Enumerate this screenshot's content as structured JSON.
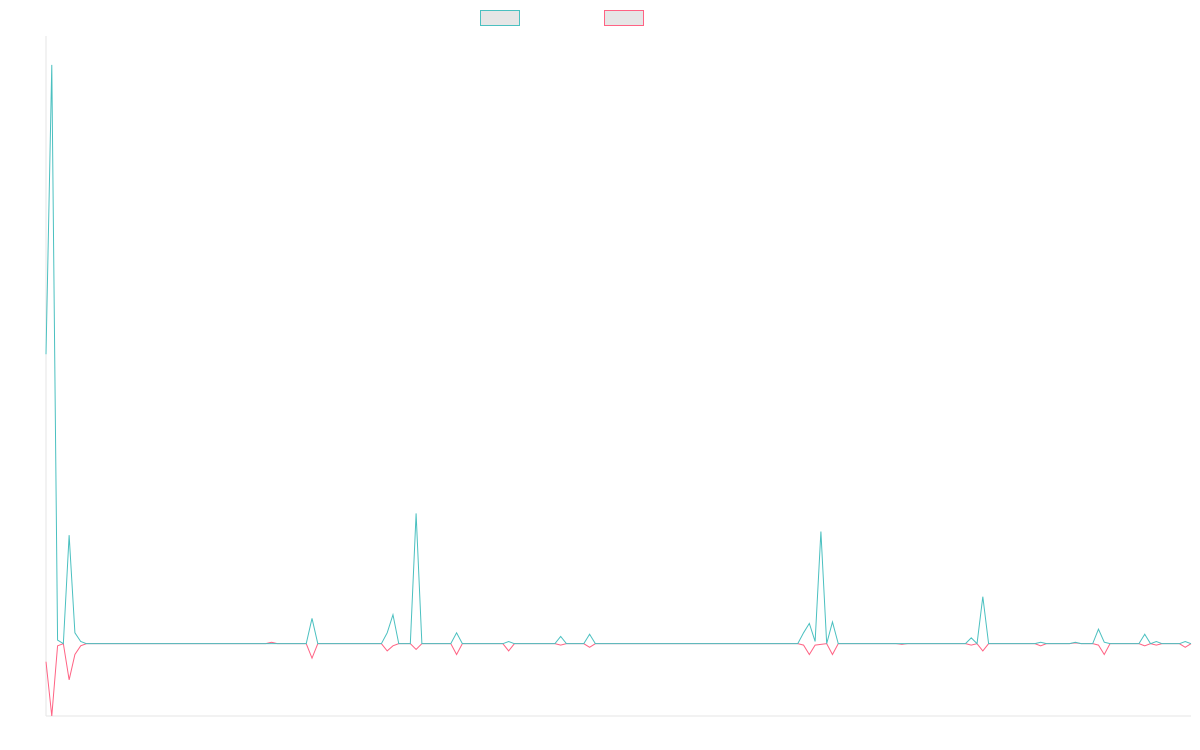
{
  "chart_data": {
    "type": "line",
    "title": "",
    "xlabel": "",
    "ylabel": "",
    "grid": false,
    "legend_position": "top-center",
    "ylim": [
      -10,
      84
    ],
    "x_count": 198,
    "series": [
      {
        "name": "",
        "color": "#4bc0c0",
        "fill": "#e6e6e6",
        "points": [
          [
            0,
            40
          ],
          [
            1,
            80
          ],
          [
            2,
            0.5
          ],
          [
            3,
            0
          ],
          [
            4,
            15
          ],
          [
            5,
            1.5
          ],
          [
            6,
            0.3
          ],
          [
            7,
            0
          ],
          [
            38,
            0
          ],
          [
            39,
            0
          ],
          [
            40,
            0
          ],
          [
            45,
            0
          ],
          [
            46,
            3.5
          ],
          [
            47,
            0
          ],
          [
            58,
            0
          ],
          [
            59,
            1.5
          ],
          [
            60,
            4
          ],
          [
            61,
            0
          ],
          [
            63,
            0
          ],
          [
            64,
            18
          ],
          [
            65,
            0
          ],
          [
            70,
            0
          ],
          [
            71,
            1.5
          ],
          [
            72,
            0
          ],
          [
            79,
            0
          ],
          [
            80,
            0.3
          ],
          [
            81,
            0
          ],
          [
            88,
            0
          ],
          [
            89,
            1
          ],
          [
            90,
            0
          ],
          [
            93,
            0
          ],
          [
            94,
            1.3
          ],
          [
            95,
            0
          ],
          [
            130,
            0
          ],
          [
            131,
            1.5
          ],
          [
            132,
            2.8
          ],
          [
            133,
            0.3
          ],
          [
            134,
            15.5
          ],
          [
            135,
            0
          ],
          [
            136,
            3
          ],
          [
            137,
            0
          ],
          [
            147,
            0
          ],
          [
            148,
            0
          ],
          [
            159,
            0
          ],
          [
            160,
            0.8
          ],
          [
            161,
            0
          ],
          [
            162,
            6.5
          ],
          [
            163,
            0
          ],
          [
            171,
            0
          ],
          [
            172,
            0.2
          ],
          [
            173,
            0
          ],
          [
            177,
            0
          ],
          [
            178,
            0.2
          ],
          [
            179,
            0
          ],
          [
            181,
            0
          ],
          [
            182,
            2
          ],
          [
            183,
            0.2
          ],
          [
            184,
            0
          ],
          [
            189,
            0
          ],
          [
            190,
            1.3
          ],
          [
            191,
            0
          ],
          [
            192,
            0.3
          ],
          [
            193,
            0
          ],
          [
            196,
            0
          ],
          [
            197,
            0.3
          ],
          [
            198,
            0
          ]
        ]
      },
      {
        "name": "",
        "color": "#ff6384",
        "fill": "#e6e6e6",
        "points": [
          [
            0,
            -2.5
          ],
          [
            1,
            -10
          ],
          [
            2,
            -0.3
          ],
          [
            3,
            0
          ],
          [
            4,
            -5
          ],
          [
            5,
            -1.5
          ],
          [
            6,
            -0.3
          ],
          [
            7,
            0
          ],
          [
            38,
            0
          ],
          [
            39,
            0.2
          ],
          [
            40,
            0
          ],
          [
            45,
            0
          ],
          [
            46,
            -2
          ],
          [
            47,
            0
          ],
          [
            58,
            0
          ],
          [
            59,
            -1
          ],
          [
            60,
            -0.3
          ],
          [
            61,
            0
          ],
          [
            63,
            0
          ],
          [
            64,
            -0.8
          ],
          [
            65,
            0
          ],
          [
            70,
            0
          ],
          [
            71,
            -1.5
          ],
          [
            72,
            0
          ],
          [
            79,
            0
          ],
          [
            80,
            -1
          ],
          [
            81,
            0
          ],
          [
            88,
            0
          ],
          [
            89,
            -0.2
          ],
          [
            90,
            0
          ],
          [
            93,
            0
          ],
          [
            94,
            -0.5
          ],
          [
            95,
            0
          ],
          [
            130,
            0
          ],
          [
            131,
            -0.2
          ],
          [
            132,
            -1.5
          ],
          [
            133,
            -0.2
          ],
          [
            134,
            -0.1
          ],
          [
            135,
            0
          ],
          [
            136,
            -1.5
          ],
          [
            137,
            0
          ],
          [
            147,
            0
          ],
          [
            148,
            -0.1
          ],
          [
            159,
            0
          ],
          [
            160,
            -0.2
          ],
          [
            161,
            0
          ],
          [
            162,
            -1
          ],
          [
            163,
            0
          ],
          [
            171,
            0
          ],
          [
            172,
            -0.3
          ],
          [
            173,
            0
          ],
          [
            177,
            0
          ],
          [
            178,
            0.1
          ],
          [
            179,
            0
          ],
          [
            181,
            0
          ],
          [
            182,
            -0.2
          ],
          [
            183,
            -1.5
          ],
          [
            184,
            0
          ],
          [
            189,
            0
          ],
          [
            190,
            -0.3
          ],
          [
            191,
            0
          ],
          [
            192,
            -0.2
          ],
          [
            193,
            0
          ],
          [
            196,
            0
          ],
          [
            197,
            -0.5
          ],
          [
            198,
            0
          ]
        ]
      }
    ]
  }
}
